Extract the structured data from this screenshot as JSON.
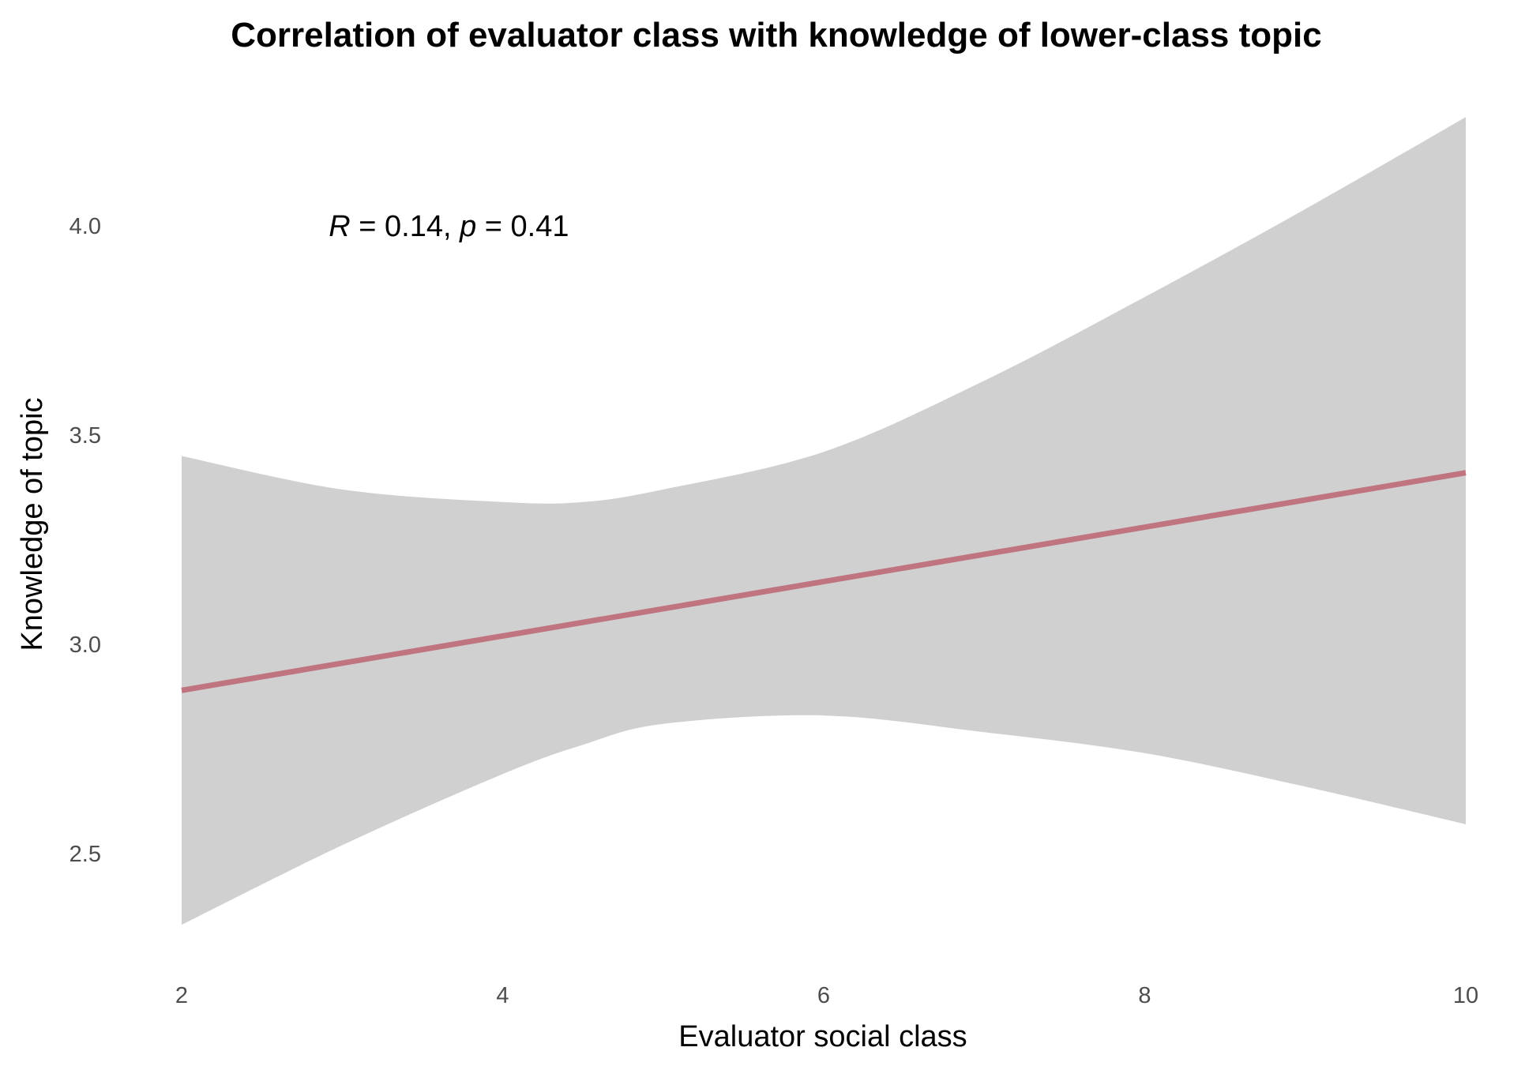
{
  "chart_data": {
    "type": "line",
    "title": "Correlation of evaluator class with knowledge of lower-class topic",
    "xlabel": "Evaluator social class",
    "ylabel": "Knowledge of topic",
    "xlim": [
      2,
      10
    ],
    "ylim": [
      2.2,
      4.3
    ],
    "xticks": [
      2,
      4,
      6,
      8,
      10
    ],
    "yticks": [
      2.5,
      3.0,
      3.5,
      4.0
    ],
    "xtick_labels": [
      "2",
      "4",
      "6",
      "8",
      "10"
    ],
    "ytick_labels": [
      "2.5",
      "3.0",
      "3.5",
      "4.0"
    ],
    "grid": false,
    "annotation": {
      "r_symbol": "R",
      "r_text": " = 0.14, ",
      "p_symbol": "p",
      "p_text": " = 0.41",
      "x": 3.0,
      "y": 4.0
    },
    "series": [
      {
        "x": [
          2,
          10
        ],
        "y": [
          2.89,
          3.41
        ],
        "color": "#c07480"
      }
    ],
    "confidence_band": {
      "color": "#d0d0d0",
      "x": [
        2,
        3,
        4,
        4.5,
        5,
        6,
        7,
        8,
        9,
        10
      ],
      "upper": [
        3.45,
        3.37,
        3.34,
        3.34,
        3.37,
        3.46,
        3.63,
        3.83,
        4.04,
        4.26
      ],
      "lower": [
        2.33,
        2.52,
        2.69,
        2.76,
        2.81,
        2.83,
        2.79,
        2.74,
        2.66,
        2.57
      ]
    }
  }
}
